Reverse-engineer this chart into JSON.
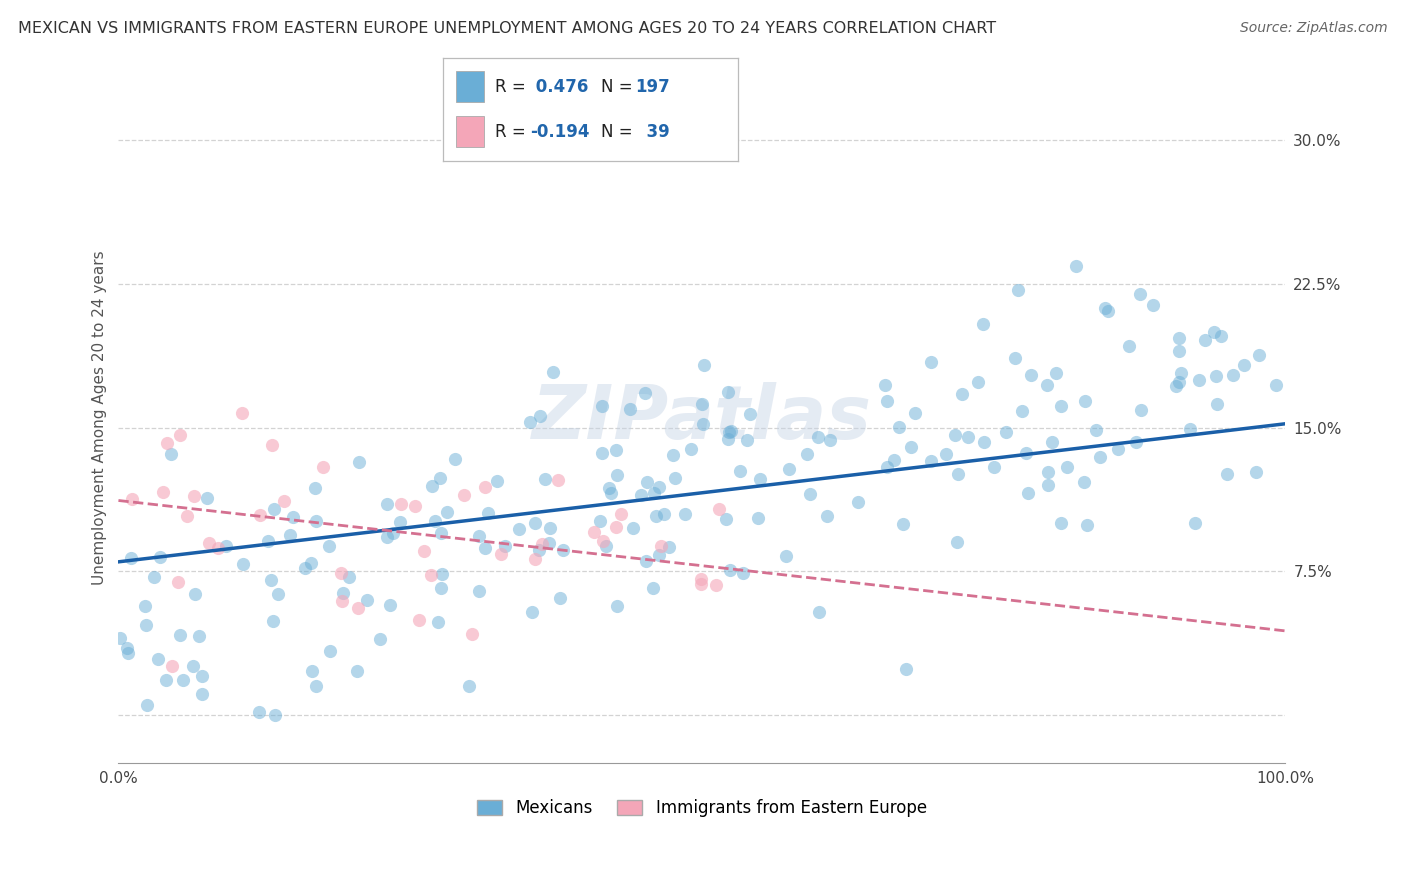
{
  "title": "MEXICAN VS IMMIGRANTS FROM EASTERN EUROPE UNEMPLOYMENT AMONG AGES 20 TO 24 YEARS CORRELATION CHART",
  "source": "Source: ZipAtlas.com",
  "ylabel": "Unemployment Among Ages 20 to 24 years",
  "xlim": [
    0.0,
    1.0
  ],
  "ylim": [
    -0.025,
    0.335
  ],
  "yticks": [
    0.0,
    0.075,
    0.15,
    0.225,
    0.3
  ],
  "ytick_labels": [
    "",
    "7.5%",
    "15.0%",
    "22.5%",
    "30.0%"
  ],
  "xtick_vals": [
    0.0,
    1.0
  ],
  "xtick_labels": [
    "0.0%",
    "100.0%"
  ],
  "blue_color": "#6aaed6",
  "pink_color": "#f4a6b8",
  "blue_line_color": "#1a5fa8",
  "pink_line_color": "#d47090",
  "grid_color": "#cccccc",
  "watermark": "ZIPatlas",
  "blue_R": 0.476,
  "blue_N": 197,
  "pink_R": -0.194,
  "pink_N": 39,
  "blue_intercept": 0.08,
  "blue_slope": 0.072,
  "pink_intercept": 0.112,
  "pink_slope": -0.068,
  "legend_label_blue": "Mexicans",
  "legend_label_pink": "Immigrants from Eastern Europe",
  "title_fontsize": 11.5,
  "source_fontsize": 10,
  "axis_label_fontsize": 11,
  "tick_fontsize": 11,
  "legend_fontsize": 12
}
